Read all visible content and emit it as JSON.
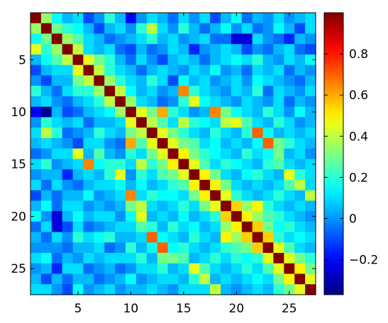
{
  "chart_data": {
    "type": "heatmap",
    "title": "",
    "xlabel": "",
    "ylabel": "",
    "n_rows": 27,
    "n_cols": 27,
    "x_range": [
      0.5,
      27.5
    ],
    "y_range": [
      0.5,
      27.5
    ],
    "x_ticks": [
      5,
      10,
      15,
      20,
      25
    ],
    "y_ticks": [
      5,
      10,
      15,
      20,
      25
    ],
    "color_range": [
      -0.37,
      1.0
    ],
    "colorbar_ticks": [
      0.8,
      0.6,
      0.4,
      0.2,
      0,
      -0.2
    ],
    "colorbar_tick_labels": [
      "0.8",
      "0.6",
      "0.4",
      "0.2",
      "0",
      "−0.2"
    ],
    "colormap": "jet",
    "values": [
      [
        1.0,
        0.35,
        0.15,
        0.05,
        0.1,
        -0.1,
        0.0,
        0.2,
        0.05,
        -0.2,
        0.0,
        0.1,
        0.05,
        -0.05,
        0.1,
        0.0,
        0.1,
        -0.1,
        0.05,
        0.15,
        -0.05,
        0.05,
        0.0,
        0.1,
        0.0,
        0.05,
        0.1
      ],
      [
        0.35,
        1.0,
        0.3,
        0.2,
        0.15,
        0.05,
        -0.1,
        0.05,
        0.1,
        0.0,
        0.2,
        0.4,
        0.1,
        0.0,
        0.2,
        0.05,
        -0.05,
        0.05,
        0.15,
        0.0,
        0.1,
        -0.05,
        0.0,
        0.15,
        0.05,
        -0.1,
        0.1
      ],
      [
        0.15,
        0.3,
        1.0,
        0.35,
        0.25,
        0.1,
        0.05,
        -0.05,
        0.0,
        0.05,
        0.1,
        0.2,
        0.05,
        0.1,
        0.0,
        0.05,
        0.1,
        -0.05,
        -0.05,
        -0.25,
        -0.25,
        0.1,
        0.0,
        -0.05,
        -0.15,
        0.05,
        0.0
      ],
      [
        0.45,
        0.2,
        0.35,
        1.0,
        0.4,
        0.1,
        0.05,
        0.1,
        -0.05,
        -0.1,
        0.05,
        -0.05,
        0.0,
        0.1,
        0.05,
        -0.15,
        0.0,
        0.05,
        0.1,
        0.05,
        -0.1,
        0.0,
        -0.05,
        0.05,
        0.1,
        -0.05,
        -0.1
      ],
      [
        0.05,
        0.15,
        0.25,
        0.4,
        1.0,
        0.45,
        0.3,
        0.2,
        0.05,
        -0.05,
        0.1,
        0.0,
        -0.1,
        0.05,
        0.1,
        0.05,
        -0.05,
        0.05,
        0.1,
        0.15,
        0.1,
        0.2,
        0.05,
        0.0,
        0.1,
        0.05,
        0.15
      ],
      [
        -0.1,
        0.05,
        0.1,
        0.1,
        0.45,
        1.0,
        0.4,
        0.2,
        0.1,
        0.05,
        -0.05,
        0.05,
        0.1,
        0.05,
        0.0,
        0.1,
        0.05,
        0.15,
        0.0,
        0.05,
        -0.05,
        0.1,
        0.05,
        0.1,
        -0.05,
        0.05,
        0.0
      ],
      [
        0.0,
        -0.1,
        0.05,
        0.05,
        0.3,
        0.4,
        1.0,
        0.35,
        0.2,
        0.1,
        0.05,
        0.2,
        0.1,
        -0.1,
        0.15,
        0.05,
        0.1,
        0.0,
        0.05,
        0.1,
        0.0,
        0.15,
        0.1,
        0.05,
        0.0,
        -0.05,
        0.05
      ],
      [
        0.2,
        0.05,
        -0.05,
        0.1,
        0.2,
        0.2,
        0.35,
        1.0,
        0.4,
        0.15,
        0.05,
        0.1,
        0.0,
        0.05,
        0.65,
        0.2,
        0.1,
        0.05,
        0.0,
        0.1,
        0.05,
        0.2,
        -0.05,
        0.1,
        0.05,
        0.0,
        0.1
      ],
      [
        0.05,
        0.1,
        0.0,
        -0.05,
        0.05,
        0.1,
        0.2,
        0.4,
        1.0,
        0.35,
        0.1,
        0.05,
        -0.05,
        0.0,
        0.2,
        0.45,
        0.15,
        0.1,
        0.05,
        0.0,
        0.1,
        0.05,
        0.0,
        0.1,
        -0.05,
        0.05,
        0.0
      ],
      [
        -0.2,
        -0.35,
        0.05,
        -0.1,
        -0.05,
        0.05,
        0.1,
        0.15,
        0.35,
        1.0,
        0.45,
        0.3,
        0.6,
        0.2,
        0.1,
        0.0,
        0.05,
        0.65,
        0.3,
        0.15,
        0.1,
        0.05,
        0.2,
        0.1,
        0.0,
        0.15,
        0.05
      ],
      [
        0.0,
        0.2,
        0.1,
        0.05,
        0.1,
        -0.05,
        0.05,
        0.05,
        0.1,
        0.45,
        1.0,
        0.4,
        0.25,
        0.1,
        0.4,
        0.2,
        0.15,
        0.1,
        0.4,
        0.45,
        0.25,
        0.1,
        0.05,
        0.2,
        0.1,
        0.0,
        0.05
      ],
      [
        0.1,
        0.4,
        0.2,
        -0.05,
        0.0,
        0.05,
        0.2,
        0.1,
        0.05,
        0.3,
        0.4,
        1.0,
        0.45,
        0.3,
        0.2,
        0.1,
        0.05,
        0.2,
        0.1,
        0.05,
        0.2,
        0.7,
        0.15,
        0.05,
        0.1,
        0.05,
        0.1
      ],
      [
        0.05,
        0.1,
        0.05,
        0.0,
        -0.1,
        0.1,
        0.1,
        0.0,
        -0.05,
        0.6,
        0.25,
        0.45,
        1.0,
        0.45,
        0.3,
        0.25,
        0.1,
        0.15,
        0.05,
        0.1,
        0.05,
        0.15,
        0.7,
        0.3,
        0.2,
        0.1,
        0.05
      ],
      [
        -0.05,
        0.0,
        0.1,
        0.1,
        0.45,
        0.05,
        0.25,
        0.05,
        0.0,
        0.2,
        0.1,
        0.3,
        0.45,
        1.0,
        0.5,
        0.3,
        0.2,
        0.15,
        0.1,
        0.05,
        0.2,
        0.1,
        0.15,
        0.3,
        0.05,
        0.1,
        0.0
      ],
      [
        0.1,
        0.2,
        0.0,
        0.05,
        0.1,
        0.65,
        0.15,
        0.2,
        0.2,
        0.1,
        0.4,
        0.2,
        0.3,
        0.5,
        1.0,
        0.45,
        0.25,
        0.1,
        0.2,
        0.15,
        0.1,
        0.05,
        0.2,
        0.25,
        0.1,
        0.05,
        0.1
      ],
      [
        0.0,
        0.05,
        0.05,
        -0.15,
        0.05,
        0.1,
        0.05,
        0.2,
        0.45,
        0.0,
        0.2,
        0.1,
        0.25,
        0.3,
        0.45,
        1.0,
        0.5,
        0.3,
        0.1,
        0.05,
        0.15,
        0.2,
        0.1,
        0.05,
        0.45,
        0.2,
        0.1
      ],
      [
        0.1,
        -0.05,
        0.1,
        0.0,
        -0.05,
        0.05,
        0.1,
        0.1,
        0.15,
        0.05,
        0.15,
        0.05,
        0.1,
        0.2,
        0.25,
        0.5,
        1.0,
        0.5,
        0.3,
        0.1,
        0.05,
        0.1,
        0.05,
        0.1,
        0.25,
        0.4,
        0.1
      ],
      [
        -0.1,
        0.05,
        -0.05,
        0.05,
        0.05,
        0.15,
        0.0,
        0.05,
        0.1,
        0.65,
        0.1,
        0.2,
        0.15,
        0.15,
        0.1,
        0.3,
        0.5,
        1.0,
        0.45,
        0.2,
        0.1,
        0.05,
        0.1,
        0.2,
        0.1,
        0.05,
        0.4
      ],
      [
        0.05,
        0.15,
        -0.05,
        0.1,
        0.1,
        0.0,
        0.05,
        0.0,
        0.05,
        0.3,
        0.4,
        0.1,
        0.05,
        0.1,
        0.2,
        0.1,
        0.3,
        0.45,
        1.0,
        0.55,
        0.35,
        0.5,
        0.2,
        0.1,
        0.05,
        0.1,
        0.05
      ],
      [
        0.15,
        0.0,
        -0.25,
        0.05,
        0.15,
        0.05,
        0.1,
        0.1,
        0.0,
        0.15,
        0.45,
        0.05,
        0.1,
        0.05,
        0.15,
        0.05,
        0.1,
        0.2,
        0.55,
        1.0,
        0.5,
        0.35,
        0.25,
        0.2,
        0.1,
        0.05,
        0.0
      ],
      [
        -0.05,
        0.1,
        -0.25,
        -0.1,
        0.1,
        -0.05,
        0.0,
        0.05,
        0.1,
        0.1,
        0.25,
        0.2,
        0.05,
        0.2,
        0.1,
        0.15,
        0.05,
        0.1,
        0.35,
        0.5,
        1.0,
        0.55,
        0.3,
        0.15,
        0.2,
        0.1,
        0.05
      ],
      [
        0.05,
        -0.05,
        0.1,
        0.0,
        0.2,
        0.1,
        0.15,
        0.2,
        0.05,
        0.05,
        0.1,
        0.7,
        0.15,
        0.1,
        0.05,
        0.2,
        0.1,
        0.05,
        0.5,
        0.35,
        0.55,
        1.0,
        0.55,
        0.2,
        0.1,
        0.15,
        0.1
      ],
      [
        0.0,
        0.0,
        0.0,
        -0.05,
        0.05,
        0.05,
        0.1,
        -0.05,
        0.0,
        0.2,
        0.05,
        0.15,
        0.7,
        0.15,
        0.2,
        0.1,
        0.05,
        0.1,
        0.2,
        0.25,
        0.3,
        0.55,
        1.0,
        0.45,
        0.25,
        0.1,
        0.05
      ],
      [
        0.1,
        0.15,
        -0.05,
        0.05,
        0.0,
        0.1,
        0.05,
        0.1,
        0.1,
        0.1,
        0.2,
        0.05,
        0.3,
        0.3,
        0.25,
        0.05,
        0.1,
        0.2,
        0.1,
        0.2,
        0.15,
        0.2,
        0.45,
        1.0,
        0.45,
        0.3,
        0.2
      ],
      [
        0.0,
        0.05,
        -0.15,
        0.1,
        0.1,
        -0.05,
        0.0,
        0.05,
        -0.05,
        0.0,
        0.1,
        0.1,
        0.2,
        0.05,
        0.1,
        0.45,
        0.25,
        0.1,
        0.05,
        0.1,
        0.2,
        0.1,
        0.25,
        0.45,
        1.0,
        0.5,
        0.3
      ],
      [
        0.05,
        -0.1,
        0.05,
        -0.05,
        0.05,
        0.05,
        -0.05,
        0.0,
        0.05,
        0.15,
        0.0,
        0.05,
        0.1,
        0.1,
        0.05,
        0.2,
        0.4,
        0.05,
        0.1,
        0.05,
        0.1,
        0.15,
        0.1,
        0.3,
        0.5,
        1.0,
        0.45
      ],
      [
        0.1,
        0.1,
        0.0,
        -0.1,
        0.15,
        0.0,
        0.05,
        0.1,
        0.0,
        0.05,
        0.05,
        0.1,
        0.05,
        0.0,
        0.1,
        0.1,
        0.1,
        0.4,
        0.05,
        0.0,
        0.05,
        0.1,
        0.05,
        0.2,
        0.3,
        0.45,
        1.0
      ]
    ]
  }
}
